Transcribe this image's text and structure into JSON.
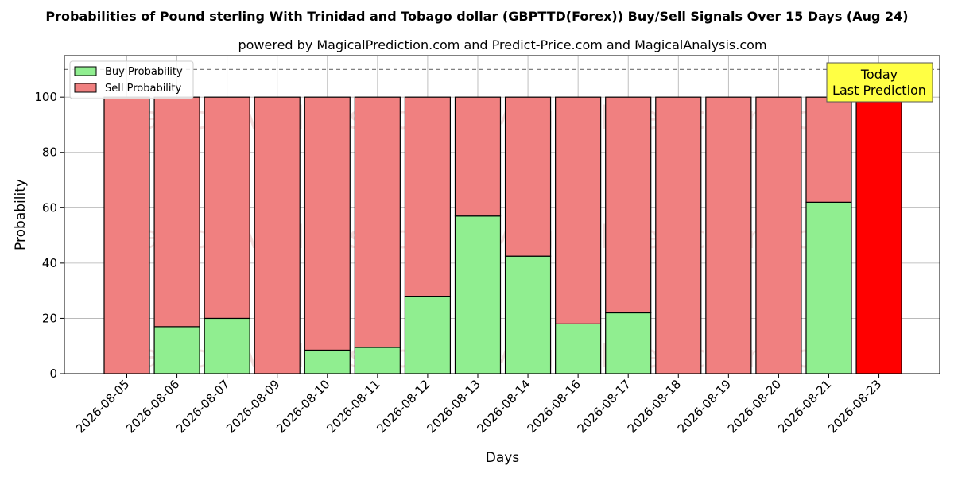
{
  "chart_data": {
    "type": "bar",
    "stacked": true,
    "title": "Probabilities of Pound sterling With Trinidad and Tobago dollar (GBPTTD(Forex)) Buy/Sell Signals Over 15 Days (Aug 24)",
    "subtitle": "powered by MagicalPrediction.com and Predict-Price.com and MagicalAnalysis.com",
    "xlabel": "Days",
    "ylabel": "Probability",
    "ylim": [
      0,
      115
    ],
    "yticks": [
      0,
      20,
      40,
      60,
      80,
      100
    ],
    "grid": true,
    "reference_line": 110,
    "legend_position": "top-left",
    "categories": [
      "2026-08-05",
      "2026-08-06",
      "2026-08-07",
      "2026-08-09",
      "2026-08-10",
      "2026-08-11",
      "2026-08-12",
      "2026-08-13",
      "2026-08-14",
      "2026-08-16",
      "2026-08-17",
      "2026-08-18",
      "2026-08-19",
      "2026-08-20",
      "2026-08-21",
      "2026-08-23"
    ],
    "series": [
      {
        "name": "Buy Probability",
        "color": "#90ee90",
        "values": [
          0,
          17,
          20,
          0,
          8.5,
          9.5,
          28,
          57,
          42.5,
          18,
          22,
          0,
          0,
          0,
          62,
          0
        ]
      },
      {
        "name": "Sell Probability",
        "color": "#f08080",
        "values": [
          100,
          83,
          80,
          100,
          91.5,
          90.5,
          72,
          43,
          57.5,
          82,
          78,
          100,
          100,
          100,
          38,
          100
        ]
      }
    ],
    "highlight": {
      "category": "2026-08-23",
      "color": "#ff0000",
      "label_lines": [
        "Today",
        "Last Prediction"
      ],
      "label_background": "#ffff44"
    },
    "watermarks": [
      "MagicalAnalysis.com",
      "MagicalPrediction.com"
    ]
  }
}
